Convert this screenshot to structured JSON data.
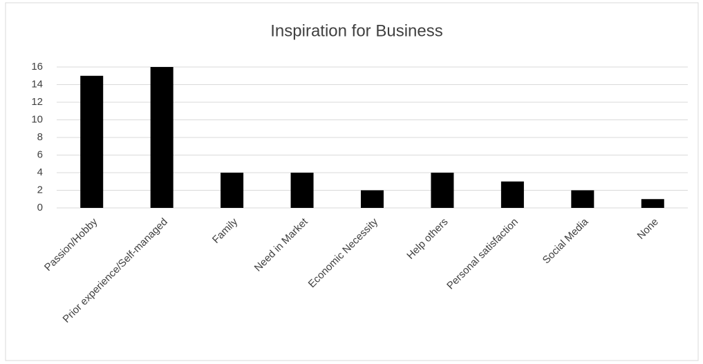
{
  "chart_data": {
    "type": "bar",
    "title": "Inspiration for Business",
    "categories": [
      "Passion/Hobby",
      "Prior experience/Self-managed",
      "Family",
      "Need in Market",
      "Economic Necessity",
      "Help others",
      "Personal satisfaction",
      "Social Media",
      "None"
    ],
    "values": [
      15,
      16,
      4,
      4,
      2,
      4,
      3,
      2,
      1
    ],
    "color": "#000000",
    "ylim": [
      0,
      16
    ],
    "yticks": [
      0,
      2,
      4,
      6,
      8,
      10,
      12,
      14,
      16
    ],
    "grid": true
  }
}
